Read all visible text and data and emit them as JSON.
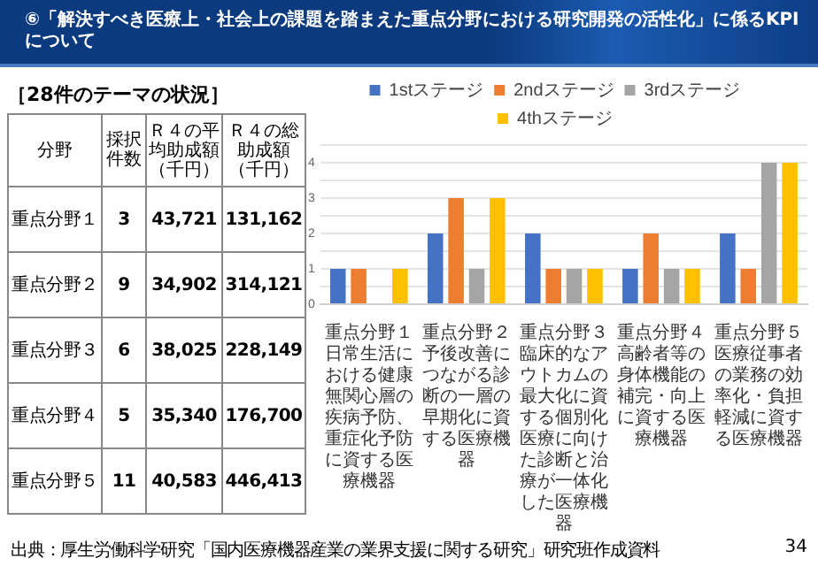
{
  "chart_data": [
    {
      "type": "other",
      "title": "［28件のテーマの状況］",
      "categories": [
        "分野",
        "採択件数",
        "Ｒ４の平均助成額（千円）",
        "Ｒ４の総助成額（千円）"
      ],
      "y_categories": [
        "重点分野１",
        "重点分野２",
        "重点分野３",
        "重点分野４",
        "重点分野５"
      ],
      "cell_labels": [
        [
          "3",
          "43,721",
          "131,162"
        ],
        [
          "9",
          "34,902",
          "314,121"
        ],
        [
          "6",
          "38,025",
          "228,149"
        ],
        [
          "5",
          "35,340",
          "176,700"
        ],
        [
          "11",
          "40,583",
          "446,413"
        ]
      ]
    },
    {
      "type": "bar",
      "title": "⑥「解決すべき医療上・社会上の課題を踏まえた重点分野における研究開発の活性化」に係るKPIについて",
      "categories": [
        "重点分野１日常生活における健康無関心層の疾病予防、重症化予防に資する医療機器",
        "重点分野２予後改善につながる診断の一層の早期化に資する医療機器",
        "重点分野３臨床的なアウトカムの最大化に資する個別化医療に向けた診断と治療が一体化した医療機器",
        "重点分野４高齢者等の身体機能の補完・向上に資する医療機器",
        "重点分野５医療従事者の業務の効率化・負担軽減に資する医療機器"
      ],
      "series": [
        {
          "name": "1stステージ",
          "color": "#4472c4",
          "values": [
            1,
            2,
            2,
            1,
            2
          ]
        },
        {
          "name": "2ndステージ",
          "color": "#ed7d31",
          "values": [
            1,
            3,
            1,
            2,
            1
          ]
        },
        {
          "name": "3rdステージ",
          "color": "#a5a5a5",
          "values": [
            0,
            1,
            1,
            1,
            4
          ]
        },
        {
          "name": "4thステージ",
          "color": "#ffc000",
          "values": [
            1,
            3,
            1,
            1,
            4
          ]
        }
      ],
      "ylim": [
        0,
        4.5
      ],
      "yticks": [
        0,
        {
          "value": 0.5,
          "label": null
        },
        1,
        {
          "value": 1.5,
          "label": null
        },
        2,
        {
          "value": 2.5,
          "label": null
        },
        3,
        {
          "value": 3.5,
          "label": null
        },
        4,
        {
          "value": 4.5,
          "label": null
        }
      ],
      "grid": "y",
      "legend": "top",
      "annotations": [
        "出典：厚生労働科学研究「国内医療機器産業の業界支援に関する研究」研究班作成資料",
        "34"
      ]
    }
  ]
}
